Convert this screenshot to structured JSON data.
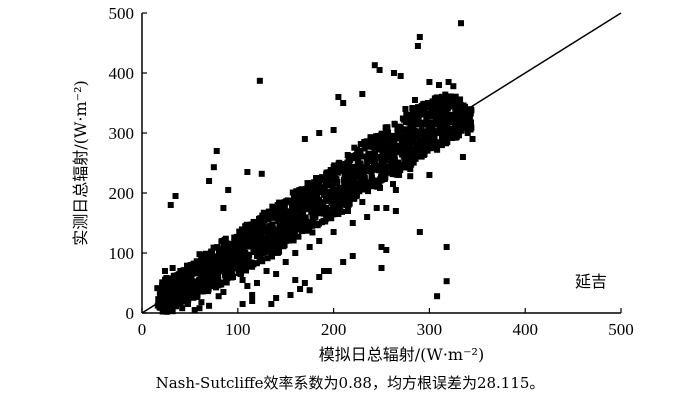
{
  "chart_data": {
    "type": "scatter",
    "xlabel": "模拟日总辐射/(W·m⁻²)",
    "ylabel": "实测日总辐射/(W·m⁻²)",
    "xlim": [
      0,
      500
    ],
    "ylim": [
      0,
      500
    ],
    "xticks": [
      "0",
      "100",
      "200",
      "300",
      "400",
      "500"
    ],
    "yticks": [
      "0",
      "100",
      "200",
      "300",
      "400",
      "500"
    ],
    "reference_line": {
      "type": "1:1",
      "from": [
        0,
        0
      ],
      "to": [
        500,
        500
      ]
    },
    "annotation": "延吉",
    "marker_color": "#000000",
    "grid": false,
    "cloud": [
      [
        20,
        0,
        45
      ],
      [
        24,
        5,
        55
      ],
      [
        28,
        8,
        60
      ],
      [
        32,
        10,
        62
      ],
      [
        36,
        12,
        66
      ],
      [
        40,
        14,
        70
      ],
      [
        45,
        18,
        76
      ],
      [
        50,
        22,
        82
      ],
      [
        55,
        26,
        88
      ],
      [
        60,
        30,
        94
      ],
      [
        65,
        34,
        100
      ],
      [
        70,
        38,
        104
      ],
      [
        75,
        42,
        110
      ],
      [
        80,
        46,
        116
      ],
      [
        85,
        50,
        122
      ],
      [
        90,
        55,
        126
      ],
      [
        95,
        60,
        132
      ],
      [
        100,
        64,
        138
      ],
      [
        105,
        68,
        142
      ],
      [
        110,
        72,
        148
      ],
      [
        115,
        76,
        152
      ],
      [
        120,
        80,
        160
      ],
      [
        125,
        86,
        164
      ],
      [
        130,
        90,
        170
      ],
      [
        135,
        94,
        176
      ],
      [
        140,
        100,
        180
      ],
      [
        145,
        104,
        186
      ],
      [
        150,
        110,
        192
      ],
      [
        155,
        114,
        198
      ],
      [
        160,
        120,
        204
      ],
      [
        165,
        124,
        208
      ],
      [
        170,
        130,
        214
      ],
      [
        175,
        134,
        220
      ],
      [
        180,
        140,
        226
      ],
      [
        185,
        146,
        230
      ],
      [
        190,
        150,
        236
      ],
      [
        195,
        156,
        242
      ],
      [
        200,
        160,
        248
      ],
      [
        205,
        166,
        254
      ],
      [
        210,
        172,
        260
      ],
      [
        215,
        176,
        264
      ],
      [
        220,
        182,
        270
      ],
      [
        225,
        188,
        276
      ],
      [
        230,
        192,
        282
      ],
      [
        235,
        198,
        288
      ],
      [
        240,
        204,
        294
      ],
      [
        245,
        208,
        298
      ],
      [
        250,
        214,
        304
      ],
      [
        255,
        220,
        310
      ],
      [
        260,
        226,
        316
      ],
      [
        265,
        230,
        320
      ],
      [
        270,
        236,
        326
      ],
      [
        275,
        242,
        332
      ],
      [
        280,
        246,
        336
      ],
      [
        285,
        252,
        342
      ],
      [
        290,
        258,
        348
      ],
      [
        295,
        262,
        352
      ],
      [
        300,
        268,
        356
      ],
      [
        305,
        272,
        360
      ],
      [
        310,
        276,
        362
      ],
      [
        315,
        282,
        364
      ],
      [
        320,
        288,
        366
      ],
      [
        325,
        292,
        362
      ],
      [
        330,
        296,
        356
      ],
      [
        335,
        300,
        350
      ],
      [
        340,
        304,
        340
      ]
    ],
    "points": [
      [
        333,
        483
      ],
      [
        290,
        460
      ],
      [
        288,
        445
      ],
      [
        123,
        387
      ],
      [
        243,
        413
      ],
      [
        248,
        405
      ],
      [
        263,
        400
      ],
      [
        270,
        395
      ],
      [
        300,
        385
      ],
      [
        310,
        380
      ],
      [
        320,
        385
      ],
      [
        325,
        378
      ],
      [
        205,
        360
      ],
      [
        230,
        365
      ],
      [
        210,
        350
      ],
      [
        75,
        243
      ],
      [
        110,
        235
      ],
      [
        125,
        232
      ],
      [
        70,
        220
      ],
      [
        90,
        205
      ],
      [
        35,
        195
      ],
      [
        30,
        180
      ],
      [
        85,
        175
      ],
      [
        170,
        290
      ],
      [
        185,
        300
      ],
      [
        200,
        305
      ],
      [
        340,
        300
      ],
      [
        345,
        290
      ],
      [
        335,
        260
      ],
      [
        300,
        230
      ],
      [
        280,
        228
      ],
      [
        250,
        232
      ],
      [
        240,
        225
      ],
      [
        255,
        175
      ],
      [
        265,
        170
      ],
      [
        290,
        135
      ],
      [
        205,
        165
      ],
      [
        215,
        170
      ],
      [
        230,
        185
      ],
      [
        200,
        205
      ],
      [
        130,
        140
      ],
      [
        160,
        145
      ],
      [
        175,
        150
      ],
      [
        145,
        115
      ],
      [
        150,
        85
      ],
      [
        130,
        70
      ],
      [
        140,
        65
      ],
      [
        160,
        55
      ],
      [
        170,
        50
      ],
      [
        185,
        60
      ],
      [
        195,
        70
      ],
      [
        210,
        85
      ],
      [
        220,
        95
      ],
      [
        250,
        110
      ],
      [
        250,
        75
      ],
      [
        255,
        105
      ],
      [
        165,
        40
      ],
      [
        175,
        38
      ],
      [
        155,
        30
      ],
      [
        140,
        25
      ],
      [
        135,
        15
      ],
      [
        115,
        20
      ],
      [
        105,
        15
      ],
      [
        55,
        5
      ],
      [
        60,
        8
      ],
      [
        70,
        12
      ],
      [
        62,
        18
      ],
      [
        48,
        15
      ],
      [
        42,
        8
      ],
      [
        32,
        3
      ],
      [
        26,
        2
      ],
      [
        120,
        95
      ],
      [
        95,
        105
      ],
      [
        115,
        30
      ],
      [
        110,
        45
      ],
      [
        120,
        50
      ],
      [
        105,
        55
      ],
      [
        318,
        110
      ],
      [
        318,
        53
      ],
      [
        308,
        28
      ],
      [
        210,
        185
      ],
      [
        190,
        70
      ],
      [
        78,
        270
      ],
      [
        262,
        215
      ],
      [
        275,
        340
      ],
      [
        285,
        355
      ],
      [
        310,
        330
      ],
      [
        330,
        325
      ],
      [
        340,
        315
      ],
      [
        320,
        330
      ],
      [
        300,
        345
      ],
      [
        295,
        340
      ],
      [
        280,
        240
      ],
      [
        265,
        205
      ],
      [
        275,
        255
      ],
      [
        260,
        245
      ],
      [
        225,
        215
      ],
      [
        245,
        175
      ],
      [
        235,
        160
      ],
      [
        220,
        150
      ],
      [
        200,
        135
      ],
      [
        185,
        120
      ],
      [
        175,
        110
      ],
      [
        160,
        100
      ],
      [
        150,
        120
      ],
      [
        95,
        60
      ],
      [
        85,
        35
      ],
      [
        80,
        28
      ],
      [
        45,
        62
      ],
      [
        40,
        70
      ],
      [
        50,
        75
      ],
      [
        65,
        85
      ],
      [
        60,
        98
      ],
      [
        28,
        40
      ],
      [
        25,
        30
      ],
      [
        24,
        70
      ],
      [
        32,
        75
      ]
    ],
    "xlabel_display": "模拟日总辐射/(W·m⁻²)"
  },
  "caption": "Nash-Sutcliffe效率系数为0.88，均方根误差为28.115。"
}
